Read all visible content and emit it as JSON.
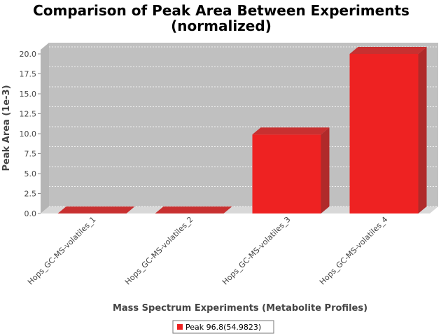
{
  "chart_data": {
    "type": "bar",
    "title": "Comparison of Peak Area Between Experiments",
    "subtitle": "(normalized)",
    "xlabel": "Mass Spectrum Experiments (Metabolite Profiles)",
    "ylabel": "Peak Area (1e-3)",
    "categories": [
      "Hops_GC-MS-volatiles_1",
      "Hops_GC-MS-volatiles_2",
      "Hops_GC-MS-volatiles_3",
      "Hops_GC-MS-volatiles_4"
    ],
    "series": [
      {
        "name": "Peak 96.8(54.9823)",
        "values": [
          0.0,
          0.0,
          9.9,
          20.0
        ],
        "color": "#ee2222"
      }
    ],
    "ylim": [
      0,
      20.5
    ],
    "yticks": [
      "0.0",
      "2.5",
      "5.0",
      "7.5",
      "10.0",
      "12.5",
      "15.0",
      "17.5",
      "20.0"
    ],
    "grid": true,
    "legend_position": "bottom",
    "plot_background": "#c0c0c0"
  }
}
